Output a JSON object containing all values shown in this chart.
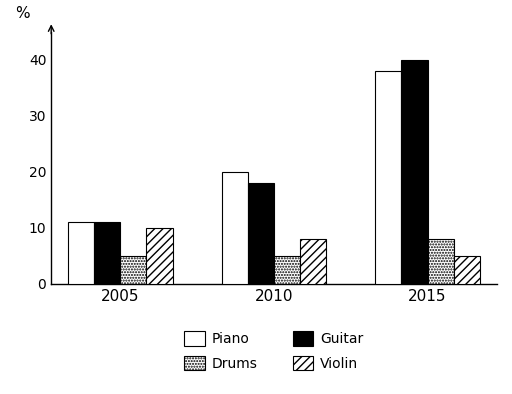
{
  "years": [
    2005,
    2010,
    2015
  ],
  "piano": [
    11,
    20,
    38
  ],
  "guitar": [
    11,
    18,
    40
  ],
  "drums": [
    5,
    5,
    8
  ],
  "violin": [
    10,
    8,
    5
  ],
  "ylabel": "%",
  "ylim": [
    0,
    45
  ],
  "yticks": [
    0,
    10,
    20,
    30,
    40
  ],
  "bar_width": 0.17,
  "background_color": "#ffffff",
  "piano_color": "#ffffff",
  "guitar_color": "#000000",
  "drums_color": "#d0d0d0",
  "violin_color": "#ffffff"
}
